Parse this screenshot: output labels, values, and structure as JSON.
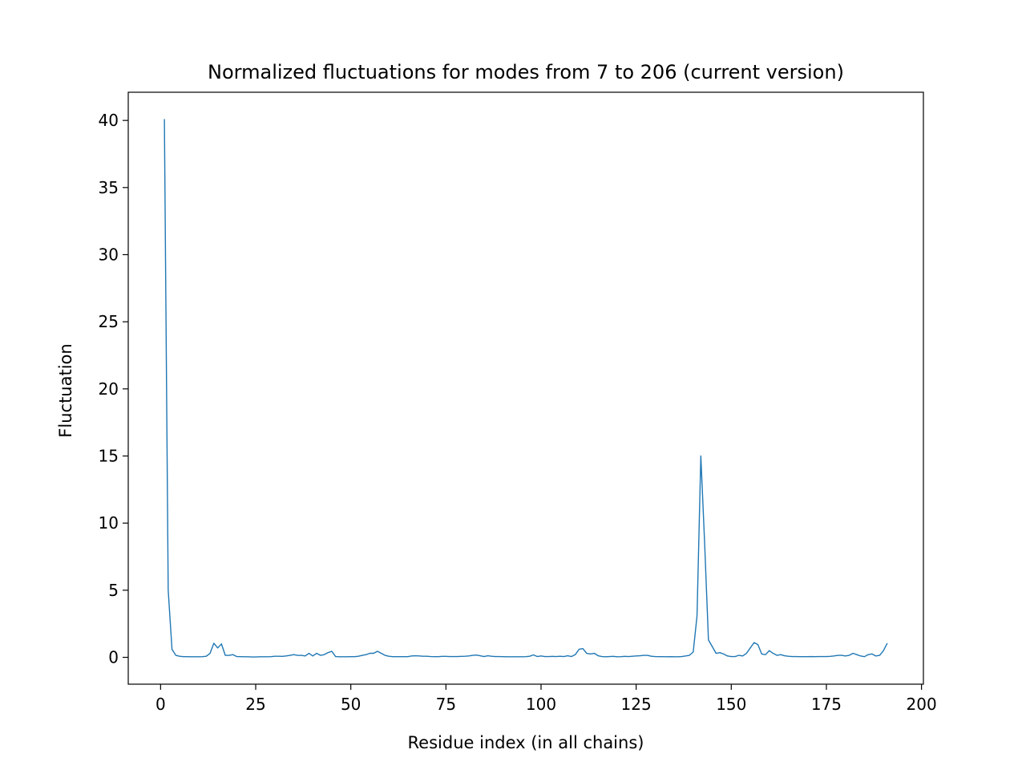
{
  "chart_data": {
    "type": "line",
    "title": "Normalized fluctuations for modes from 7 to 206 (current version)",
    "x_label": "Residue index (in all chains)",
    "y_label": "Fluctuation",
    "x": [
      1,
      2,
      3,
      4,
      5,
      6,
      7,
      8,
      9,
      10,
      11,
      12,
      13,
      14,
      15,
      16,
      17,
      18,
      19,
      20,
      21,
      22,
      23,
      24,
      25,
      26,
      27,
      28,
      29,
      30,
      31,
      32,
      33,
      34,
      35,
      36,
      37,
      38,
      39,
      40,
      41,
      42,
      43,
      44,
      45,
      46,
      47,
      48,
      49,
      50,
      51,
      52,
      53,
      54,
      55,
      56,
      57,
      58,
      59,
      60,
      61,
      62,
      63,
      64,
      65,
      66,
      67,
      68,
      69,
      70,
      71,
      72,
      73,
      74,
      75,
      76,
      77,
      78,
      79,
      80,
      81,
      82,
      83,
      84,
      85,
      86,
      87,
      88,
      89,
      90,
      91,
      92,
      93,
      94,
      95,
      96,
      97,
      98,
      99,
      100,
      101,
      102,
      103,
      104,
      105,
      106,
      107,
      108,
      109,
      110,
      111,
      112,
      113,
      114,
      115,
      116,
      117,
      118,
      119,
      120,
      121,
      122,
      123,
      124,
      125,
      126,
      127,
      128,
      129,
      130,
      131,
      132,
      133,
      134,
      135,
      136,
      137,
      138,
      139,
      140,
      141,
      142,
      143,
      144,
      145,
      146,
      147,
      148,
      149,
      150,
      151,
      152,
      153,
      154,
      155,
      156,
      157,
      158,
      159,
      160,
      161,
      162,
      163,
      164,
      165,
      166,
      167,
      168,
      169,
      170,
      171,
      172,
      173,
      174,
      175,
      176,
      177,
      178,
      179,
      180,
      181,
      182,
      183,
      184,
      185,
      186,
      187,
      188,
      189,
      190,
      191
    ],
    "series": [
      {
        "color": "#1f77b4",
        "values": [
          40.1,
          5.0,
          0.6,
          0.15,
          0.08,
          0.05,
          0.05,
          0.04,
          0.04,
          0.04,
          0.05,
          0.08,
          0.3,
          1.05,
          0.7,
          1.0,
          0.15,
          0.15,
          0.2,
          0.06,
          0.05,
          0.04,
          0.04,
          0.03,
          0.03,
          0.04,
          0.04,
          0.04,
          0.05,
          0.08,
          0.08,
          0.07,
          0.1,
          0.15,
          0.2,
          0.15,
          0.15,
          0.1,
          0.3,
          0.1,
          0.3,
          0.15,
          0.2,
          0.35,
          0.45,
          0.06,
          0.04,
          0.04,
          0.04,
          0.05,
          0.05,
          0.08,
          0.15,
          0.2,
          0.3,
          0.3,
          0.45,
          0.3,
          0.15,
          0.08,
          0.05,
          0.05,
          0.05,
          0.05,
          0.05,
          0.1,
          0.12,
          0.1,
          0.08,
          0.08,
          0.06,
          0.05,
          0.05,
          0.07,
          0.07,
          0.06,
          0.06,
          0.06,
          0.07,
          0.08,
          0.1,
          0.15,
          0.17,
          0.12,
          0.06,
          0.12,
          0.08,
          0.06,
          0.06,
          0.05,
          0.04,
          0.04,
          0.04,
          0.04,
          0.04,
          0.05,
          0.08,
          0.18,
          0.06,
          0.1,
          0.06,
          0.06,
          0.07,
          0.06,
          0.08,
          0.06,
          0.12,
          0.06,
          0.2,
          0.6,
          0.65,
          0.3,
          0.25,
          0.3,
          0.12,
          0.06,
          0.04,
          0.06,
          0.07,
          0.04,
          0.05,
          0.07,
          0.06,
          0.08,
          0.1,
          0.12,
          0.15,
          0.15,
          0.08,
          0.06,
          0.05,
          0.05,
          0.04,
          0.05,
          0.04,
          0.04,
          0.06,
          0.1,
          0.15,
          0.4,
          3.1,
          15.0,
          8.5,
          1.3,
          0.8,
          0.3,
          0.35,
          0.25,
          0.1,
          0.06,
          0.06,
          0.15,
          0.1,
          0.3,
          0.7,
          1.1,
          0.95,
          0.25,
          0.2,
          0.5,
          0.3,
          0.15,
          0.2,
          0.12,
          0.08,
          0.06,
          0.06,
          0.05,
          0.05,
          0.05,
          0.06,
          0.05,
          0.06,
          0.06,
          0.06,
          0.07,
          0.1,
          0.15,
          0.15,
          0.1,
          0.15,
          0.3,
          0.2,
          0.1,
          0.05,
          0.2,
          0.25,
          0.1,
          0.15,
          0.5,
          1.05
        ]
      }
    ],
    "xlim": [
      -8.5,
      200.5
    ],
    "ylim": [
      -2.0,
      42.1
    ],
    "xticks": [
      0,
      25,
      50,
      75,
      100,
      125,
      150,
      175,
      200
    ],
    "yticks": [
      0,
      5,
      10,
      15,
      20,
      25,
      30,
      35,
      40
    ],
    "grid": false
  }
}
